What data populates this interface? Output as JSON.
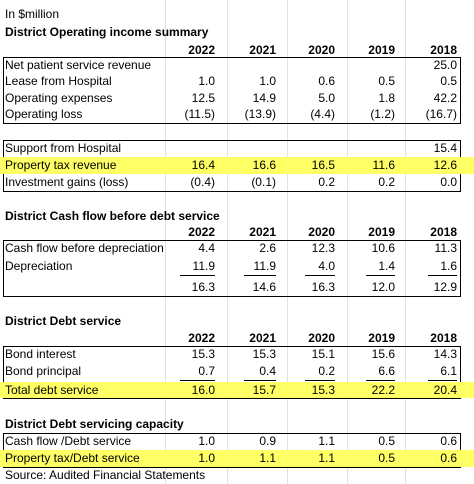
{
  "units": "In $million",
  "source": "Source: Audited Financial Statements",
  "years": [
    "2022",
    "2021",
    "2020",
    "2019",
    "2018"
  ],
  "s1": {
    "title": "District Operating income summary",
    "rows": [
      {
        "label": "Net patient service revenue",
        "v": [
          "",
          "",
          "",
          "",
          "25.0"
        ]
      },
      {
        "label": "Lease from Hospital",
        "v": [
          "1.0",
          "1.0",
          "0.6",
          "0.5",
          "0.5"
        ]
      },
      {
        "label": "Operating expenses",
        "v": [
          "12.5",
          "14.9",
          "5.0",
          "1.8",
          "42.2"
        ]
      },
      {
        "label": "Operating loss",
        "v": [
          "(11.5)",
          "(13.9)",
          "(4.4)",
          "(1.2)",
          "(16.7)"
        ]
      }
    ],
    "extra": [
      {
        "label": "Support from Hospital",
        "v": [
          "",
          "",
          "",
          "",
          "15.4"
        ]
      },
      {
        "label": "Property tax revenue",
        "v": [
          "16.4",
          "16.6",
          "16.5",
          "11.6",
          "12.6"
        ]
      },
      {
        "label": "Investment gains (loss)",
        "v": [
          "(0.4)",
          "(0.1)",
          "0.2",
          "0.2",
          "0.0"
        ]
      }
    ]
  },
  "s2": {
    "title": "District Cash flow before debt service",
    "rows": [
      {
        "label": "Cash flow before depreciation",
        "v": [
          "4.4",
          "2.6",
          "12.3",
          "10.6",
          "11.3"
        ]
      },
      {
        "label": "Depreciation",
        "v": [
          "11.9",
          "11.9",
          "4.0",
          "1.4",
          "1.6"
        ]
      },
      {
        "label": "",
        "v": [
          "16.3",
          "14.6",
          "16.3",
          "12.0",
          "12.9"
        ]
      }
    ]
  },
  "s3": {
    "title": "District Debt service",
    "rows": [
      {
        "label": "Bond interest",
        "v": [
          "15.3",
          "15.3",
          "15.1",
          "15.6",
          "14.3"
        ]
      },
      {
        "label": "Bond principal",
        "v": [
          "0.7",
          "0.4",
          "0.2",
          "6.6",
          "6.1"
        ]
      },
      {
        "label": "Total debt service",
        "v": [
          "16.0",
          "15.7",
          "15.3",
          "22.2",
          "20.4"
        ]
      }
    ]
  },
  "s4": {
    "title": "District Debt servicing capacity",
    "rows": [
      {
        "label": "Cash flow /Debt service",
        "v": [
          "1.0",
          "0.9",
          "1.1",
          "0.5",
          "0.6"
        ]
      },
      {
        "label": "Property tax/Debt service",
        "v": [
          "1.0",
          "1.1",
          "1.1",
          "0.5",
          "0.6"
        ]
      }
    ]
  },
  "highlight_color": "#ffff66"
}
